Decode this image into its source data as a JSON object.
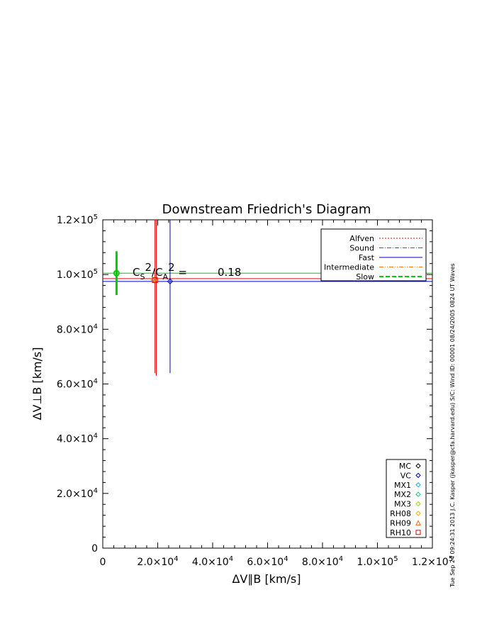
{
  "chart_data": {
    "type": "scatter",
    "title": "Downstream Friedrich's Diagram",
    "xlabel": "ΔV∥B [km/s]",
    "ylabel": "ΔV⊥B [km/s]",
    "xlim": [
      0,
      120000
    ],
    "ylim": [
      0,
      120000
    ],
    "x_ticks": [
      {
        "value": 0,
        "base": "0",
        "exp": ""
      },
      {
        "value": 20000,
        "base": "2.0×10",
        "exp": "4"
      },
      {
        "value": 40000,
        "base": "4.0×10",
        "exp": "4"
      },
      {
        "value": 60000,
        "base": "6.0×10",
        "exp": "4"
      },
      {
        "value": 80000,
        "base": "8.0×10",
        "exp": "4"
      },
      {
        "value": 100000,
        "base": "1.0×10",
        "exp": "5"
      },
      {
        "value": 120000,
        "base": "1.2×10",
        "exp": "5"
      }
    ],
    "y_ticks": [
      {
        "value": 0,
        "base": "0",
        "exp": ""
      },
      {
        "value": 20000,
        "base": "2.0×10",
        "exp": "4"
      },
      {
        "value": 40000,
        "base": "4.0×10",
        "exp": "4"
      },
      {
        "value": 60000,
        "base": "6.0×10",
        "exp": "4"
      },
      {
        "value": 80000,
        "base": "8.0×10",
        "exp": "4"
      },
      {
        "value": 100000,
        "base": "1.0×10",
        "exp": "5"
      },
      {
        "value": 120000,
        "base": "1.2×10",
        "exp": "5"
      }
    ],
    "annotation": {
      "text": "C_S^2/C_A^2 =",
      "value": "0.18",
      "x": 10000,
      "y": 100000
    },
    "legend_modes": [
      {
        "name": "Alfven",
        "color": "#dd0000",
        "dash": "dotted"
      },
      {
        "name": "Sound",
        "color": "#0070e0",
        "dash": "dashdot"
      },
      {
        "name": "Fast",
        "color": "#0000cc",
        "dash": "solid"
      },
      {
        "name": "Intermediate",
        "color": "#ff7700",
        "dash": "dashdotdot"
      },
      {
        "name": "Slow",
        "color": "#00cc00",
        "dash": "longdash"
      }
    ],
    "legend_methods": [
      {
        "name": "MC",
        "color": "#000000",
        "marker": "diamond"
      },
      {
        "name": "VC",
        "color": "#0000cc",
        "marker": "diamond"
      },
      {
        "name": "MX1",
        "color": "#00aaee",
        "marker": "diamond"
      },
      {
        "name": "MX2",
        "color": "#00cc66",
        "marker": "diamond"
      },
      {
        "name": "MX3",
        "color": "#99dd00",
        "marker": "diamond"
      },
      {
        "name": "RH08",
        "color": "#ffaa00",
        "marker": "diamond"
      },
      {
        "name": "RH09",
        "color": "#ff6600",
        "marker": "triangle"
      },
      {
        "name": "RH10",
        "color": "#dd0000",
        "marker": "square"
      }
    ],
    "curves": [
      {
        "name": "Slow",
        "color": "#00cc00",
        "orientation": "h",
        "value": 100500,
        "range": [
          0,
          120000
        ]
      },
      {
        "name": "Fast",
        "color": "#0000cc",
        "orientation": "h",
        "value": 97500,
        "range": [
          0,
          120000
        ]
      },
      {
        "name": "Alfven",
        "color": "#dd0000",
        "orientation": "h",
        "value": 98500,
        "range": [
          0,
          120000
        ]
      },
      {
        "name": "Fast",
        "color": "#0000cc",
        "orientation": "v",
        "value": 24500,
        "range": [
          64000,
          120000
        ]
      },
      {
        "name": "Alfven",
        "color": "#dd0000",
        "orientation": "v",
        "value": 19000,
        "range": [
          64000,
          120000
        ]
      },
      {
        "name": "Alfven",
        "color": "#dd0000",
        "orientation": "v",
        "value": 19500,
        "range": [
          63000,
          120000
        ]
      },
      {
        "name": "Slow",
        "color": "#00cc00",
        "orientation": "v",
        "value": 5000,
        "range": [
          92500,
          108500
        ]
      }
    ],
    "points": [
      {
        "name": "MC",
        "x": 5000,
        "y": 100500,
        "color": "#00cc00",
        "marker": "circle"
      },
      {
        "name": "VC",
        "x": 24500,
        "y": 97500,
        "color": "#0000cc",
        "marker": "diamond"
      },
      {
        "name": "RH08",
        "x": 18500,
        "y": 98000,
        "color": "#ffaa00",
        "marker": "diamond"
      },
      {
        "name": "RH09",
        "x": 19000,
        "y": 98000,
        "color": "#ff6600",
        "marker": "triangle"
      },
      {
        "name": "RH10",
        "x": 19000,
        "y": 98000,
        "color": "#dd0000",
        "marker": "square"
      }
    ]
  },
  "side_text": "Tue Sep 24 09:24:31 2013   J.C. Kasper (jkasper@cfa.harvard.edu)   S/C: Wind ID: 00001 08/24/2005  0824 UT Waves"
}
